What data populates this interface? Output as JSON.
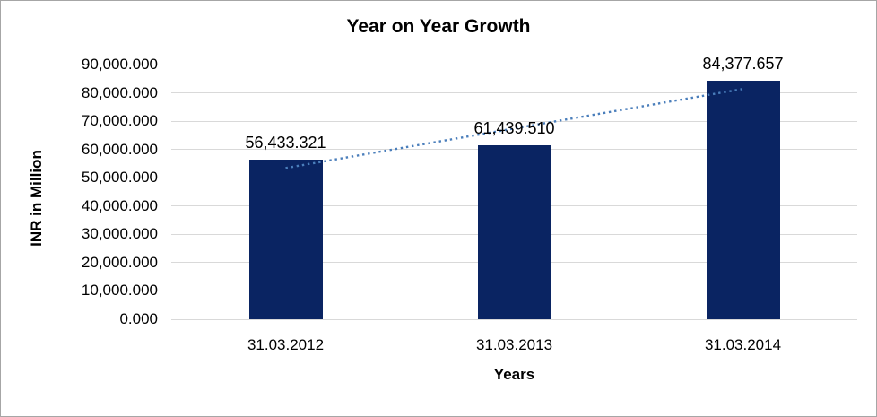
{
  "chart_data": {
    "type": "bar",
    "title": "Year on Year Growth",
    "xlabel": "Years",
    "ylabel": "INR in Million",
    "categories": [
      "31.03.2012",
      "31.03.2013",
      "31.03.2014"
    ],
    "values": [
      56433.321,
      61439.51,
      84377.657
    ],
    "data_labels": [
      "56,433.321",
      "61,439.510",
      "84,377.657"
    ],
    "series": [
      {
        "name": "INR in Million",
        "values": [
          56433.321,
          61439.51,
          84377.657
        ]
      }
    ],
    "ylim": [
      0,
      90000
    ],
    "ytick_values": [
      0,
      10000,
      20000,
      30000,
      40000,
      50000,
      60000,
      70000,
      80000,
      90000
    ],
    "ytick_labels": [
      "0.000",
      "10,000.000",
      "20,000.000",
      "30,000.000",
      "40,000.000",
      "50,000.000",
      "60,000.000",
      "70,000.000",
      "80,000.000",
      "90,000.000"
    ],
    "grid": true,
    "legend_position": "none",
    "trendline": {
      "type": "linear",
      "style": "dotted",
      "start_value": 53444.7,
      "end_value": 81389.0
    }
  },
  "colors": {
    "bar": "#0a2462",
    "trendline": "#4a7ebb",
    "gridline": "#d9d9d9",
    "text": "#000000",
    "border": "#a6a6a6",
    "background": "#ffffff"
  }
}
